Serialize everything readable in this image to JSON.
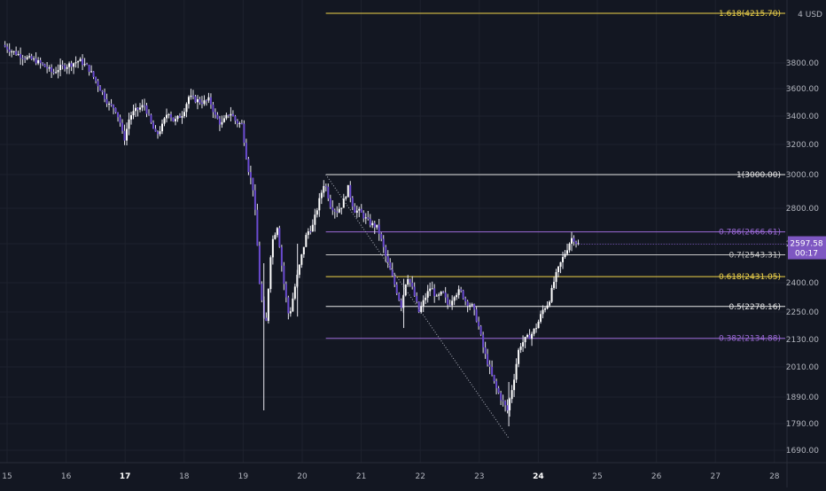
{
  "chart_data": {
    "type": "candlestick",
    "currency": "USD",
    "x_ticks": [
      {
        "label": "15",
        "day": 15,
        "bold": false
      },
      {
        "label": "16",
        "day": 16,
        "bold": false
      },
      {
        "label": "17",
        "day": 17,
        "bold": true
      },
      {
        "label": "18",
        "day": 18,
        "bold": false
      },
      {
        "label": "19",
        "day": 19,
        "bold": false
      },
      {
        "label": "20",
        "day": 20,
        "bold": false
      },
      {
        "label": "21",
        "day": 21,
        "bold": false
      },
      {
        "label": "22",
        "day": 22,
        "bold": false
      },
      {
        "label": "23",
        "day": 23,
        "bold": false
      },
      {
        "label": "24",
        "day": 24,
        "bold": true
      },
      {
        "label": "25",
        "day": 25,
        "bold": false
      },
      {
        "label": "26",
        "day": 26,
        "bold": false
      },
      {
        "label": "27",
        "day": 27,
        "bold": false
      },
      {
        "label": "28",
        "day": 28,
        "bold": false
      }
    ],
    "y_ticks": [
      {
        "label": "3800.00",
        "value": 3800
      },
      {
        "label": "3600.00",
        "value": 3600
      },
      {
        "label": "3400.00",
        "value": 3400
      },
      {
        "label": "3200.00",
        "value": 3200
      },
      {
        "label": "3000.00",
        "value": 3000
      },
      {
        "label": "2800.00",
        "value": 2800
      },
      {
        "label": "2600.00",
        "value": 2600
      },
      {
        "label": "2400.00",
        "value": 2400
      },
      {
        "label": "2250.00",
        "value": 2250
      },
      {
        "label": "2130.00",
        "value": 2130
      },
      {
        "label": "2010.00",
        "value": 2010
      },
      {
        "label": "1890.00",
        "value": 1890
      },
      {
        "label": "1790.00",
        "value": 1790
      },
      {
        "label": "1690.00",
        "value": 1690
      }
    ],
    "fib_start_day": 20.4,
    "fib_levels": [
      {
        "label": "1.618(4215.70)",
        "value": 4215.7,
        "color": "#f0d44a"
      },
      {
        "label": "1(3000.00)",
        "value": 3000.0,
        "color": "#e8e8e8"
      },
      {
        "label": "0.786(2666.61)",
        "value": 2666.61,
        "color": "#9c6ad8"
      },
      {
        "label": "0.7(2543.31)",
        "value": 2543.31,
        "color": "#c8c8c8"
      },
      {
        "label": "0.618(2431.05)",
        "value": 2431.05,
        "color": "#f0d44a"
      },
      {
        "label": "0.5(2278.16)",
        "value": 2278.16,
        "color": "#e8e8e8"
      },
      {
        "label": "0.382(2134.88)",
        "value": 2134.88,
        "color": "#9c6ad8"
      }
    ],
    "trend_line": {
      "from": {
        "day": 20.4,
        "value": 3000
      },
      "to": {
        "day": 23.5,
        "value": 1735
      }
    },
    "price_ohlc_path": [
      [
        14.95,
        3950
      ],
      [
        15.1,
        3900
      ],
      [
        15.3,
        3850
      ],
      [
        15.5,
        3820
      ],
      [
        15.7,
        3760
      ],
      [
        15.8,
        3720
      ],
      [
        15.9,
        3760
      ],
      [
        16.1,
        3790
      ],
      [
        16.25,
        3820
      ],
      [
        16.4,
        3760
      ],
      [
        16.5,
        3680
      ],
      [
        16.6,
        3600
      ],
      [
        16.75,
        3480
      ],
      [
        16.85,
        3460
      ],
      [
        16.95,
        3340
      ],
      [
        17.0,
        3220
      ],
      [
        17.1,
        3400
      ],
      [
        17.2,
        3440
      ],
      [
        17.35,
        3480
      ],
      [
        17.45,
        3360
      ],
      [
        17.55,
        3260
      ],
      [
        17.65,
        3330
      ],
      [
        17.75,
        3440
      ],
      [
        17.85,
        3360
      ],
      [
        18.0,
        3420
      ],
      [
        18.1,
        3540
      ],
      [
        18.2,
        3520
      ],
      [
        18.35,
        3500
      ],
      [
        18.45,
        3520
      ],
      [
        18.55,
        3400
      ],
      [
        18.65,
        3340
      ],
      [
        18.8,
        3430
      ],
      [
        18.9,
        3360
      ],
      [
        19.0,
        3340
      ],
      [
        19.1,
        3050
      ],
      [
        19.2,
        2900
      ],
      [
        19.3,
        2400
      ],
      [
        19.4,
        2150
      ],
      [
        19.5,
        2600
      ],
      [
        19.6,
        2700
      ],
      [
        19.7,
        2420
      ],
      [
        19.8,
        2220
      ],
      [
        19.9,
        2380
      ],
      [
        20.0,
        2520
      ],
      [
        20.1,
        2660
      ],
      [
        20.2,
        2700
      ],
      [
        20.3,
        2830
      ],
      [
        20.4,
        2960
      ],
      [
        20.5,
        2820
      ],
      [
        20.6,
        2780
      ],
      [
        20.7,
        2820
      ],
      [
        20.8,
        2920
      ],
      [
        20.9,
        2790
      ],
      [
        21.0,
        2780
      ],
      [
        21.15,
        2720
      ],
      [
        21.3,
        2690
      ],
      [
        21.45,
        2520
      ],
      [
        21.6,
        2380
      ],
      [
        21.7,
        2280
      ],
      [
        21.8,
        2440
      ],
      [
        21.9,
        2360
      ],
      [
        22.0,
        2250
      ],
      [
        22.1,
        2320
      ],
      [
        22.2,
        2380
      ],
      [
        22.3,
        2320
      ],
      [
        22.4,
        2350
      ],
      [
        22.5,
        2280
      ],
      [
        22.6,
        2340
      ],
      [
        22.7,
        2360
      ],
      [
        22.8,
        2300
      ],
      [
        22.9,
        2280
      ],
      [
        23.0,
        2200
      ],
      [
        23.1,
        2080
      ],
      [
        23.2,
        2000
      ],
      [
        23.3,
        1930
      ],
      [
        23.4,
        1880
      ],
      [
        23.5,
        1840
      ],
      [
        23.6,
        1950
      ],
      [
        23.7,
        2100
      ],
      [
        23.8,
        2130
      ],
      [
        23.9,
        2150
      ],
      [
        24.0,
        2190
      ],
      [
        24.1,
        2260
      ],
      [
        24.2,
        2300
      ],
      [
        24.3,
        2420
      ],
      [
        24.4,
        2500
      ],
      [
        24.5,
        2570
      ],
      [
        24.6,
        2640
      ],
      [
        24.68,
        2598
      ]
    ],
    "last_price": {
      "label": "2597.58",
      "value": 2597.58
    },
    "countdown": "00:17"
  }
}
